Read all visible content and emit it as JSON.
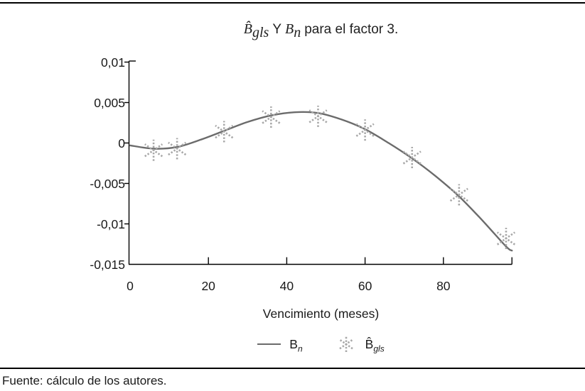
{
  "figure": {
    "title": {
      "b_gls_main": "B̂",
      "b_gls_sub": "gls",
      "connector": "Y",
      "b_n_main": "B",
      "b_n_sub": "n",
      "rest": "para el factor 3."
    },
    "footer": "Fuente: cálculo de los autores."
  },
  "legend": {
    "line_label_main": "B",
    "line_label_sub": "n",
    "marker_label_main": "B̂",
    "marker_label_sub": "gls"
  },
  "chart_data": {
    "type": "line",
    "title": "B̂ gls Y B n para el factor 3.",
    "xlabel": "Vencimiento (meses)",
    "ylabel": "",
    "xlim": [
      0,
      97.5
    ],
    "ylim": [
      -0.015,
      0.01
    ],
    "grid": false,
    "legend_position": "bottom-center",
    "x_tick_values": [
      0,
      20,
      40,
      60,
      80
    ],
    "x_tick_labels": [
      "0",
      "20",
      "40",
      "60",
      "80"
    ],
    "y_tick_values": [
      0.01,
      0.005,
      0,
      -0.005,
      -0.01,
      -0.015
    ],
    "y_tick_labels": [
      "0,01",
      "0,005",
      "0",
      "-0,005",
      "-0,01",
      "-0,015"
    ],
    "series": [
      {
        "name": "B_n",
        "kind": "line",
        "color": "#6b6b6b",
        "x": [
          0,
          6,
          12,
          18,
          24,
          30,
          36,
          42,
          48,
          54,
          60,
          66,
          72,
          78,
          84,
          90,
          96,
          97.5
        ],
        "y": [
          -0.0003,
          -0.0007,
          -0.0005,
          0.0004,
          0.0015,
          0.0026,
          0.0034,
          0.0038,
          0.0037,
          0.0029,
          0.0017,
          0.0,
          -0.0019,
          -0.0041,
          -0.0066,
          -0.0096,
          -0.0128,
          -0.0133
        ]
      },
      {
        "name": "B̂_gls",
        "kind": "scatter",
        "marker": "asterisk",
        "color": "#a8a8a8",
        "x": [
          6,
          12,
          24,
          36,
          48,
          60,
          72,
          84,
          96
        ],
        "y": [
          -0.0009,
          -0.0007,
          0.0014,
          0.0032,
          0.0033,
          0.0016,
          -0.0018,
          -0.0064,
          -0.0118
        ]
      }
    ]
  }
}
